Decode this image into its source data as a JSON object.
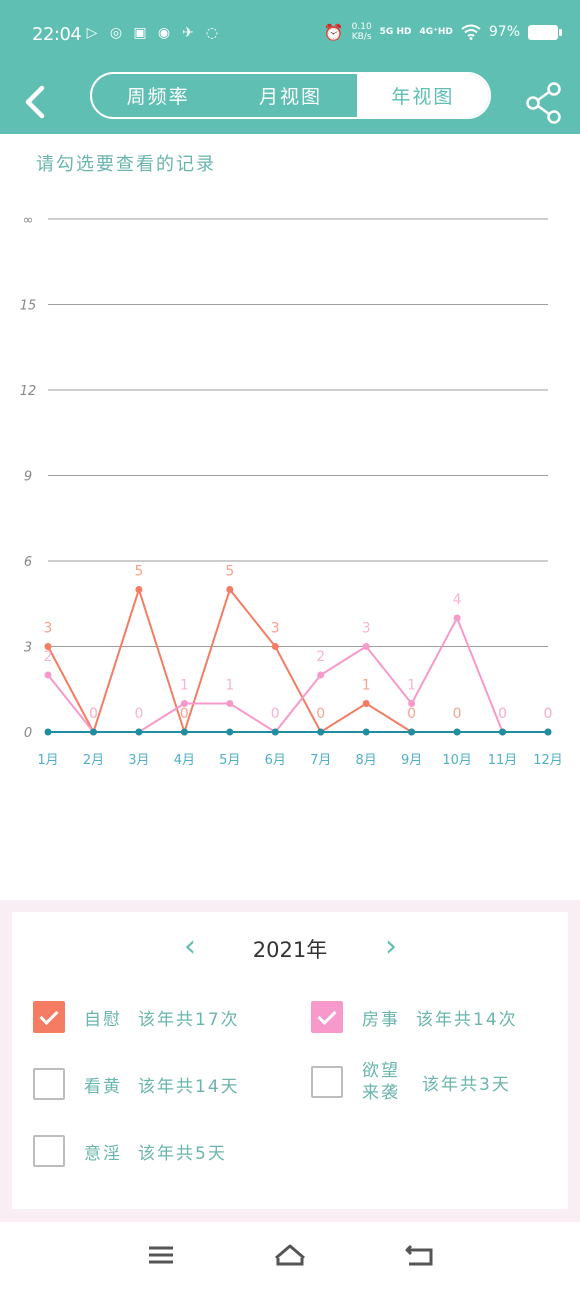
{
  "status": {
    "time": "22:04",
    "speed_value": "0.10",
    "speed_unit": "KB/s",
    "net1": "5G HD",
    "net2": "4G⁺HD",
    "battery": "97%"
  },
  "header": {
    "tabs": [
      {
        "label": "周频率",
        "active": false
      },
      {
        "label": "月视图",
        "active": false
      },
      {
        "label": "年视图",
        "active": true
      }
    ]
  },
  "hint": "请勾选要查看的记录",
  "chart_data": {
    "type": "line",
    "categories": [
      "1月",
      "2月",
      "3月",
      "4月",
      "5月",
      "6月",
      "7月",
      "8月",
      "9月",
      "10月",
      "11月",
      "12月"
    ],
    "y_ticks": [
      "0",
      "3",
      "6",
      "9",
      "12",
      "15",
      "∞"
    ],
    "ylim": [
      0,
      18
    ],
    "grid": true,
    "series": [
      {
        "color": "#f47c62",
        "values": [
          3,
          0,
          5,
          0,
          5,
          3,
          0,
          1,
          0,
          0,
          0,
          0
        ]
      },
      {
        "color": "#f79acb",
        "values": [
          2,
          0,
          0,
          1,
          1,
          0,
          2,
          3,
          1,
          4,
          0,
          0
        ]
      },
      {
        "color": "#1f8ea0",
        "values": [
          0,
          0,
          0,
          0,
          0,
          0,
          0,
          0,
          0,
          0,
          0,
          0
        ]
      }
    ]
  },
  "panel": {
    "year": "2021年",
    "items": [
      {
        "label": "自慰",
        "count": "该年共17次",
        "checked": true
      },
      {
        "label": "房事",
        "count": "该年共14次",
        "checked": true
      },
      {
        "label": "看黄",
        "count": "该年共14天",
        "checked": false
      },
      {
        "label_line1": "欲望",
        "label_line2": "来袭",
        "count": "该年共3天",
        "checked": false
      },
      {
        "label": "意淫",
        "count": "该年共5天",
        "checked": false
      }
    ]
  }
}
